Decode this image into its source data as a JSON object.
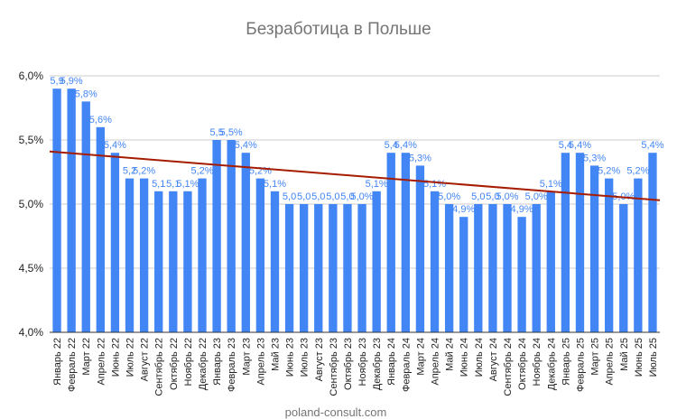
{
  "chart_data": {
    "type": "bar",
    "title": "Безработица в Польше",
    "xlabel": "",
    "ylabel": "",
    "ylim": [
      4.0,
      6.0
    ],
    "yticks": [
      "4,0%",
      "4,5%",
      "5,0%",
      "5,5%",
      "6,0%"
    ],
    "grid": true,
    "legend": "none",
    "categories": [
      "Январь 22",
      "Февраль 22",
      "Март 22",
      "Апрель 22",
      "Июнь 22",
      "Июль 22",
      "Август 22",
      "Сентябрь 22",
      "Октябрь 22",
      "Ноябрь 22",
      "Декабрь 22",
      "Январь 23",
      "Февраль 23",
      "Март 23",
      "Апрель 23",
      "Май 23",
      "Июнь 23",
      "Июль 23",
      "Август 23",
      "Сентябрь 23",
      "Октябрь 23",
      "Ноябрь 23",
      "Декабрь 23",
      "Январь 24",
      "Февраль 24",
      "Март 24",
      "Апрель 24",
      "Май 24",
      "Июнь 24",
      "Июль 24",
      "Август 24",
      "Сентябрь 24",
      "Октябрь 24",
      "Ноябрь 24",
      "Декабрь 24",
      "Январь 25",
      "Февраль 25",
      "Март 25",
      "Апрель 25",
      "Май 25",
      "Июнь 25",
      "Июль 25"
    ],
    "values": [
      5.9,
      5.9,
      5.8,
      5.6,
      5.4,
      5.2,
      5.2,
      5.1,
      5.1,
      5.1,
      5.2,
      5.5,
      5.5,
      5.4,
      5.2,
      5.1,
      5.0,
      5.0,
      5.0,
      5.0,
      5.0,
      5.0,
      5.1,
      5.4,
      5.4,
      5.3,
      5.1,
      5.0,
      4.9,
      5.0,
      5.0,
      5.0,
      4.9,
      5.0,
      5.1,
      5.4,
      5.4,
      5.3,
      5.2,
      5.0,
      5.2,
      5.4
    ],
    "data_labels": [
      "5,9",
      "5,9%",
      "5,8%",
      "5,6%",
      "5,4%",
      "5,2",
      "5,2%",
      "5,1",
      "5,1",
      "5,1%",
      "5,2%",
      "5,5",
      "5,5%",
      "5,4%",
      "5,2%",
      "5,1%",
      "5,0",
      "5,0",
      "5,0",
      "5,0",
      "5,0",
      "5,0%",
      "5,1%",
      "5,4",
      "5,4%",
      "5,3%",
      "5,1%",
      "5,0%",
      "4,9%",
      "5,0",
      "5,0",
      "5,0%",
      "4,9%",
      "5,0%",
      "5,1%",
      "5,4",
      "5,4%",
      "5,3%",
      "5,2%",
      "5,0%",
      "5,2%",
      "5,4%"
    ],
    "trendline": {
      "start": 5.41,
      "end": 5.03
    },
    "colors": {
      "bar": "#4285f4",
      "label": "#4285f4",
      "trend": "#a61c00",
      "grid": "#cccccc",
      "axis": "#333333"
    }
  },
  "source": "poland-consult.com"
}
